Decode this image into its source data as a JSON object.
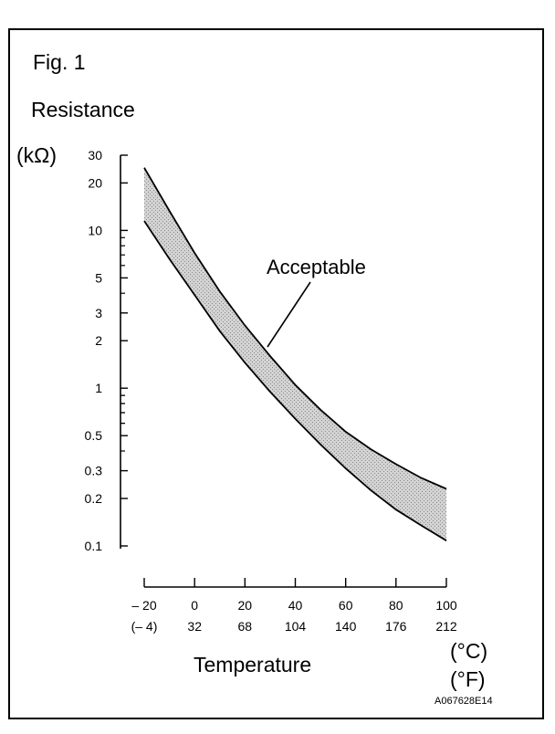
{
  "figure_label": "Fig. 1",
  "ylabel_title": "Resistance",
  "yunit": "(kΩ)",
  "xlabel": "Temperature",
  "xunit_c": "(°C)",
  "xunit_f": "(°F)",
  "code": "A067628E14",
  "annotation": "Acceptable",
  "colors": {
    "line": "#000000",
    "band_fill": "#d3d3d3",
    "background": "#ffffff"
  },
  "chart_data": {
    "type": "area",
    "title": "Fig. 1",
    "xlabel": "Temperature",
    "ylabel": "Resistance (kΩ)",
    "yscale": "log",
    "xlim": [
      -20,
      100
    ],
    "ylim": [
      0.1,
      30
    ],
    "x_ticks": [
      -20,
      0,
      20,
      40,
      60,
      80,
      100
    ],
    "x_tick_labels_c": [
      "– 20",
      "0",
      "20",
      "40",
      "60",
      "80",
      "100"
    ],
    "x_tick_labels_f": [
      "(– 4)",
      "32",
      "68",
      "104",
      "140",
      "176",
      "212"
    ],
    "y_ticks": [
      0.1,
      0.2,
      0.3,
      0.5,
      1,
      2,
      3,
      5,
      10,
      20,
      30
    ],
    "y_tick_labels": [
      "0.1",
      "0.2",
      "0.3",
      "0.5",
      "1",
      "2",
      "3",
      "5",
      "10",
      "20",
      "30"
    ],
    "grid": false,
    "series": [
      {
        "x": [
          -20,
          -10,
          0,
          10,
          20,
          30,
          40,
          50,
          60,
          70,
          80,
          90,
          100
        ],
        "values": [
          25,
          13.3,
          7.2,
          4.1,
          2.5,
          1.6,
          1.05,
          0.73,
          0.53,
          0.41,
          0.33,
          0.27,
          0.23
        ]
      },
      {
        "x": [
          -20,
          -10,
          0,
          10,
          20,
          30,
          40,
          50,
          60,
          70,
          80,
          90,
          100
        ],
        "values": [
          11.5,
          6.6,
          3.9,
          2.3,
          1.45,
          0.95,
          0.64,
          0.44,
          0.31,
          0.225,
          0.17,
          0.135,
          0.108
        ]
      }
    ],
    "annotations": [
      {
        "text": "Acceptable",
        "x": 30,
        "y": 1.8
      }
    ]
  }
}
